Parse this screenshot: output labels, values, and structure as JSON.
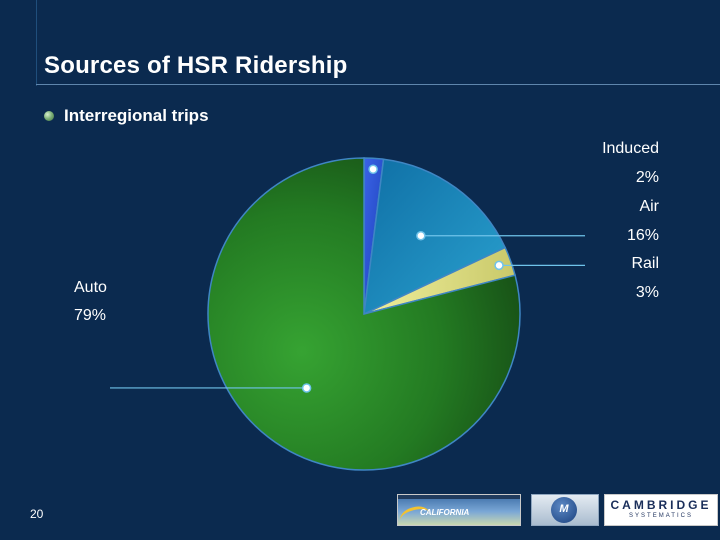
{
  "slide": {
    "title": "Sources of HSR Ridership",
    "bullet": "Interregional trips",
    "number": "20"
  },
  "colors": {
    "background": "#0b2a4f",
    "induced": "#2a4fd1",
    "air": "#1a86b5",
    "rail": "#dfe08a",
    "auto": "#1e6b1e",
    "leader": "#6fc3ea"
  },
  "logos": {
    "hsr": {
      "label": "CALIFORNIA"
    },
    "m": {
      "label": "M"
    },
    "cambridge": {
      "name": "CAMBRIDGE",
      "sub": "SYSTEMATICS"
    }
  },
  "chart_data": {
    "type": "pie",
    "slices": [
      {
        "label": "Induced",
        "value": 2,
        "display": "2%"
      },
      {
        "label": "Air",
        "value": 16,
        "display": "16%"
      },
      {
        "label": "Rail",
        "value": 3,
        "display": "3%"
      },
      {
        "label": "Auto",
        "value": 79,
        "display": "79%"
      }
    ]
  }
}
